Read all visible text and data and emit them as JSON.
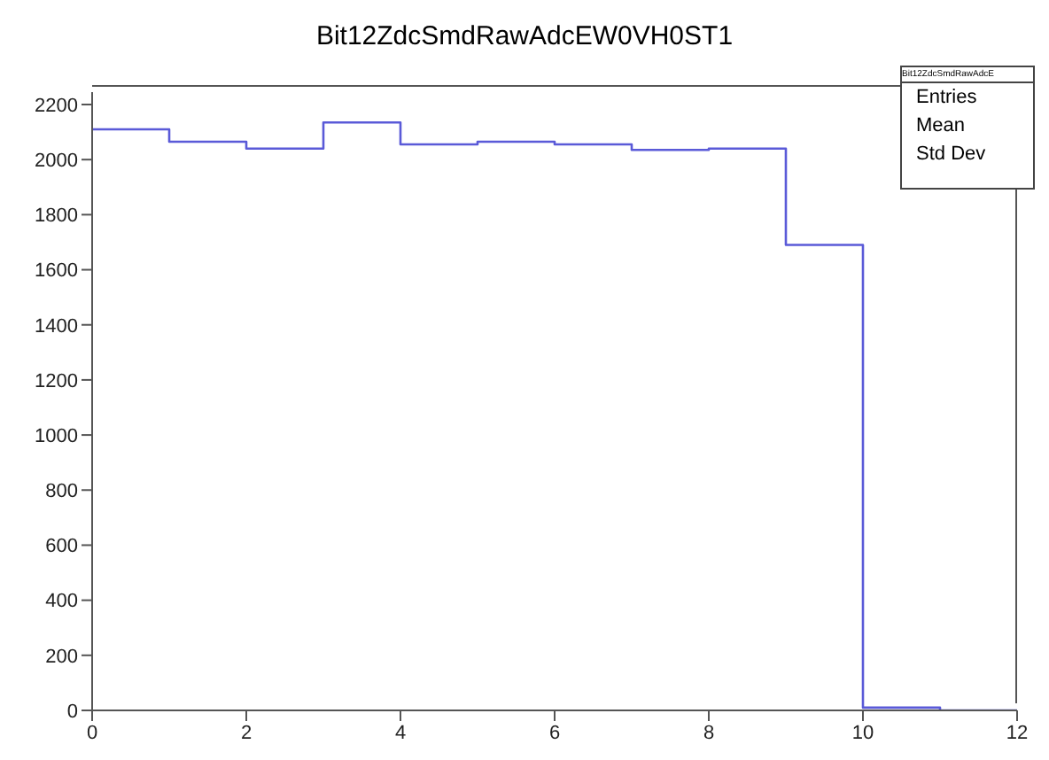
{
  "chart_data": {
    "type": "histogram",
    "title": "Bit12ZdcSmdRawAdcEW0VH0ST1",
    "bins": [
      0,
      1,
      2,
      3,
      4,
      5,
      6,
      7,
      8,
      9,
      10,
      11,
      12
    ],
    "values": [
      2110,
      2065,
      2040,
      2135,
      2055,
      2065,
      2055,
      2035,
      2040,
      1690,
      10,
      0
    ],
    "color": "#5a5ad8",
    "xlim": [
      0,
      12
    ],
    "xticks": [
      0,
      2,
      4,
      6,
      8,
      10,
      12
    ],
    "ylim": [
      0,
      2245
    ],
    "yticks": [
      0,
      200,
      400,
      600,
      800,
      1000,
      1200,
      1400,
      1600,
      1800,
      2000,
      2200
    ],
    "annotations": [
      "Bit12ZdcSmdRawAdcE",
      "Entries",
      "Mean",
      "Std Dev"
    ]
  }
}
